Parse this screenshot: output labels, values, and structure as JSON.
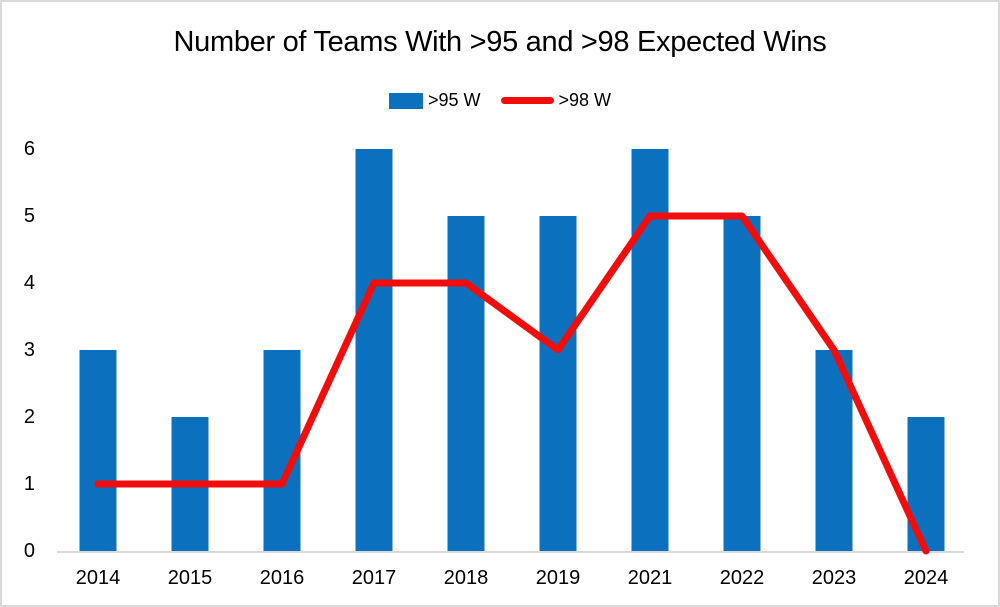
{
  "page": {
    "title": "Number of Teams With >95 and >98 Expected Wins"
  },
  "legend": {
    "items": [
      {
        "label": ">95 W",
        "swatch": "bar",
        "color": "#0b71be"
      },
      {
        "label": ">98 W",
        "swatch": "line",
        "color": "#f20d0d"
      }
    ]
  },
  "colors": {
    "bar": "#0b71be",
    "line": "#f20d0d",
    "axis": "#d9d9d9",
    "text": "#000000",
    "border": "#d9d9d9",
    "background": "#ffffff"
  },
  "chart_data": {
    "type": "bar",
    "subtype": "combo-bar-line",
    "title": "Number of Teams With >95 and >98 Expected Wins",
    "categories": [
      "2014",
      "2015",
      "2016",
      "2017",
      "2018",
      "2019",
      "2021",
      "2022",
      "2023",
      "2024"
    ],
    "series": [
      {
        "name": ">95 W",
        "type": "bar",
        "color": "#0b71be",
        "values": [
          3,
          2,
          3,
          6,
          5,
          5,
          6,
          5,
          3,
          2
        ]
      },
      {
        "name": ">98 W",
        "type": "line",
        "color": "#f20d0d",
        "values": [
          1,
          1,
          1,
          4,
          4,
          3,
          5,
          5,
          3,
          0
        ]
      }
    ],
    "xlabel": "",
    "ylabel": "",
    "ylim": [
      0,
      6
    ],
    "yticks": [
      0,
      1,
      2,
      3,
      4,
      5,
      6
    ],
    "grid": false,
    "legend_position": "top-center",
    "axis_line": "bottom-only"
  }
}
